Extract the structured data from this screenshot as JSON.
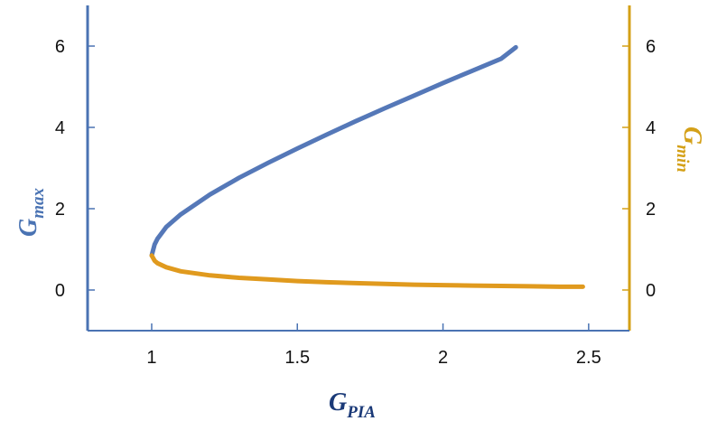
{
  "chart_data": {
    "type": "line",
    "xlabel": {
      "main": "G",
      "sub": "PIA"
    },
    "ylabel_left": {
      "main": "G",
      "sub": "max"
    },
    "ylabel_right": {
      "main": "G",
      "sub": "min"
    },
    "xlim": [
      0.78,
      2.64
    ],
    "ylim": [
      -1,
      7
    ],
    "x_ticks": [
      1,
      1.5,
      2,
      2.5
    ],
    "x_tick_labels": [
      "1",
      "1.5",
      "2",
      "2.5"
    ],
    "y_ticks": [
      0,
      2,
      4,
      6
    ],
    "y_tick_labels": [
      "0",
      "2",
      "4",
      "6"
    ],
    "grid": false,
    "legend": "none",
    "colors": {
      "left_axis": "#4a73b3",
      "right_axis": "#d4a017",
      "bottom_axis": "#4a73b3",
      "gmax_line": "#5578b8",
      "gmin_line": "#e09a1e"
    },
    "series": [
      {
        "axis": "left",
        "x": [
          1.0,
          1.01,
          1.02,
          1.05,
          1.1,
          1.2,
          1.3,
          1.4,
          1.5,
          1.6,
          1.7,
          1.8,
          1.9,
          2.0,
          2.1,
          2.2,
          2.25
        ],
        "y": [
          0.85,
          1.12,
          1.26,
          1.55,
          1.86,
          2.35,
          2.76,
          3.13,
          3.48,
          3.82,
          4.15,
          4.47,
          4.78,
          5.09,
          5.39,
          5.69,
          5.97
        ]
      },
      {
        "axis": "right",
        "x": [
          1.0,
          1.01,
          1.02,
          1.05,
          1.1,
          1.2,
          1.3,
          1.4,
          1.5,
          1.6,
          1.7,
          1.8,
          1.9,
          2.0,
          2.1,
          2.2,
          2.3,
          2.4,
          2.48
        ],
        "y": [
          0.85,
          0.72,
          0.66,
          0.56,
          0.46,
          0.36,
          0.3,
          0.26,
          0.22,
          0.19,
          0.17,
          0.15,
          0.13,
          0.12,
          0.11,
          0.1,
          0.09,
          0.08,
          0.08
        ]
      }
    ]
  }
}
